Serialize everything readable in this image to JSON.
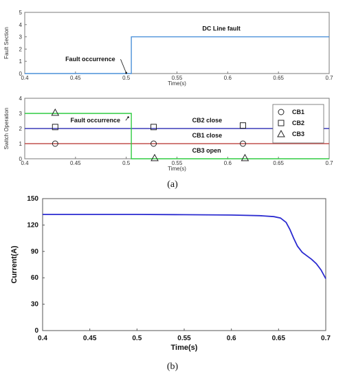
{
  "chart_data": [
    {
      "type": "line",
      "ylabel": "Fault Section",
      "xlabel": "Time(s)",
      "xlim": [
        0.4,
        0.7
      ],
      "ylim": [
        0,
        5
      ],
      "xticks": [
        "0.4",
        "0.45",
        "0.5",
        "0.55",
        "0.6",
        "0.65",
        "0.7"
      ],
      "yticks": [
        "0",
        "1",
        "2",
        "3",
        "4",
        "5"
      ],
      "series": [
        {
          "x": [
            0.4,
            0.505,
            0.505,
            0.7
          ],
          "y": [
            0,
            0,
            3,
            3
          ],
          "color": "#4a90d9"
        }
      ],
      "annotations": [
        {
          "text": "DC Line fault",
          "x": 0.575,
          "y": 3.5
        },
        {
          "text": "Fault occurrence",
          "x": 0.44,
          "y": 1.0,
          "arrow_to": [
            0.5,
            0.05
          ]
        }
      ],
      "grid": false
    },
    {
      "type": "line",
      "ylabel": "Switch Operation",
      "xlabel": "Time(s)",
      "xlim": [
        0.4,
        0.7
      ],
      "ylim": [
        0,
        4
      ],
      "xticks": [
        "0.4",
        "0.45",
        "0.5",
        "0.55",
        "0.6",
        "0.65",
        "0.7"
      ],
      "yticks": [
        "0",
        "1",
        "2",
        "3",
        "4"
      ],
      "series": [
        {
          "name": "CB1",
          "marker": "circle",
          "color": "#c0504d",
          "x": [
            0.4,
            0.7
          ],
          "y": [
            1,
            1
          ],
          "marker_x": [
            0.43,
            0.527,
            0.615
          ],
          "marker_y": [
            1,
            1,
            1
          ]
        },
        {
          "name": "CB2",
          "marker": "square",
          "color": "#3b3bb8",
          "x": [
            0.4,
            0.7
          ],
          "y": [
            2,
            2
          ],
          "marker_x": [
            0.43,
            0.527,
            0.615
          ],
          "marker_y": [
            2.1,
            2.1,
            2.2
          ]
        },
        {
          "name": "CB3",
          "marker": "triangle",
          "color": "#2ecc40",
          "x": [
            0.4,
            0.505,
            0.505,
            0.7
          ],
          "y": [
            3,
            3,
            0,
            0
          ],
          "marker_x": [
            0.43,
            0.528,
            0.617
          ],
          "marker_y": [
            3.05,
            0.05,
            0.05
          ]
        }
      ],
      "annotations": [
        {
          "text": "Fault occurrence",
          "x": 0.445,
          "y": 2.4,
          "arrow_to": [
            0.502,
            2.75
          ]
        },
        {
          "text": "CB2 close",
          "x": 0.565,
          "y": 2.4
        },
        {
          "text": "CB1 close",
          "x": 0.565,
          "y": 1.4
        },
        {
          "text": "CB3 open",
          "x": 0.565,
          "y": 0.4
        }
      ],
      "legend": "right",
      "grid": false
    },
    {
      "type": "line",
      "ylabel": "Current(A)",
      "xlabel": "Time(s)",
      "xlim": [
        0.4,
        0.7
      ],
      "ylim": [
        0,
        150
      ],
      "xticks": [
        "0.4",
        "0.45",
        "0.5",
        "0.55",
        "0.6",
        "0.65",
        "0.7"
      ],
      "yticks": [
        "0",
        "30",
        "60",
        "90",
        "120",
        "150"
      ],
      "series": [
        {
          "color": "#2a2ad0",
          "x": [
            0.4,
            0.45,
            0.5,
            0.55,
            0.6,
            0.63,
            0.645,
            0.652,
            0.658,
            0.662,
            0.666,
            0.67,
            0.675,
            0.68,
            0.685,
            0.69,
            0.695,
            0.7
          ],
          "y": [
            132,
            132,
            132,
            131.7,
            131.3,
            130.6,
            129.5,
            128,
            123,
            115,
            105,
            96,
            89,
            85,
            81,
            76,
            69,
            59
          ]
        }
      ],
      "grid": false
    }
  ],
  "captions": {
    "a": "(a)",
    "b": "(b)"
  }
}
